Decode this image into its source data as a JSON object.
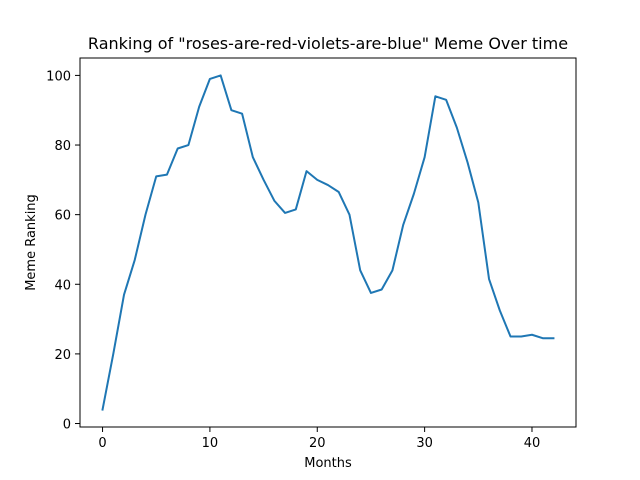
{
  "chart_data": {
    "type": "line",
    "title": "Ranking of \"roses-are-red-violets-are-blue\" Meme Over time",
    "xlabel": "Months",
    "ylabel": "Meme Ranking",
    "xlim": [
      -2.1,
      44.1
    ],
    "ylim": [
      -1,
      105
    ],
    "xticks": [
      0,
      10,
      20,
      30,
      40
    ],
    "yticks": [
      0,
      20,
      40,
      60,
      80,
      100
    ],
    "grid": false,
    "series": [
      {
        "color": "#1f77b4",
        "x": [
          0,
          1,
          2,
          3,
          4,
          5,
          6,
          7,
          8,
          9,
          10,
          11,
          12,
          13,
          14,
          15,
          16,
          17,
          18,
          19,
          20,
          21,
          22,
          23,
          24,
          25,
          26,
          27,
          28,
          29,
          30,
          31,
          32,
          33,
          34,
          35,
          36,
          37,
          38,
          39,
          40,
          41,
          42
        ],
        "values": [
          4,
          20,
          37,
          47,
          60,
          71,
          71.5,
          79,
          80,
          91,
          99,
          100,
          90,
          89,
          76.5,
          70,
          64,
          60.5,
          61.5,
          72.5,
          70,
          68.5,
          66.5,
          60,
          44,
          37.5,
          38.5,
          44,
          57,
          66,
          76.5,
          94,
          93,
          85,
          75,
          63.5,
          41.5,
          32.5,
          25,
          25,
          25.5,
          24.5,
          24.5
        ]
      }
    ]
  }
}
